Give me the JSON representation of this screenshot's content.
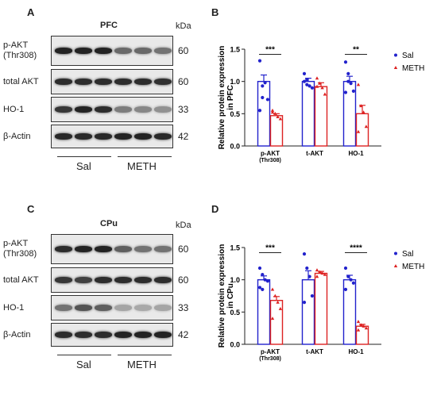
{
  "panels": {
    "A": {
      "label": "A",
      "title": "PFC",
      "kda_label": "kDa",
      "rows": [
        {
          "label": "p-AKT\n(Thr308)",
          "mw": "60",
          "intensity": [
            0.95,
            0.95,
            0.95,
            0.6,
            0.6,
            0.55
          ]
        },
        {
          "label": "total AKT",
          "mw": "60",
          "intensity": [
            0.9,
            0.9,
            0.9,
            0.9,
            0.9,
            0.88
          ]
        },
        {
          "label": "HO-1",
          "mw": "33",
          "intensity": [
            0.85,
            0.95,
            0.9,
            0.5,
            0.45,
            0.4
          ]
        },
        {
          "label": "β-Actin",
          "mw": "42",
          "intensity": [
            0.92,
            0.92,
            0.92,
            0.95,
            0.95,
            0.92
          ]
        }
      ],
      "groups": [
        "Sal",
        "METH"
      ]
    },
    "C": {
      "label": "C",
      "title": "CPu",
      "kda_label": "kDa",
      "rows": [
        {
          "label": "p-AKT\n(Thr308)",
          "mw": "60",
          "intensity": [
            0.9,
            0.95,
            0.95,
            0.65,
            0.55,
            0.55
          ]
        },
        {
          "label": "total AKT",
          "mw": "60",
          "intensity": [
            0.85,
            0.8,
            0.9,
            0.9,
            0.9,
            0.9
          ]
        },
        {
          "label": "HO-1",
          "mw": "33",
          "intensity": [
            0.55,
            0.7,
            0.65,
            0.3,
            0.28,
            0.3
          ]
        },
        {
          "label": "β-Actin",
          "mw": "42",
          "intensity": [
            0.9,
            0.9,
            0.9,
            0.95,
            0.95,
            0.95
          ]
        }
      ],
      "groups": [
        "Sal",
        "METH"
      ]
    },
    "B": {
      "label": "B"
    },
    "D": {
      "label": "D"
    }
  },
  "chart_data": [
    {
      "type": "bar",
      "panel": "B",
      "ylabel": "Relative protein expression\nin PFC",
      "categories": [
        "p-AKT\n(Thr308)",
        "t-AKT",
        "HO-1"
      ],
      "ylim": [
        0,
        1.5
      ],
      "yticks": [
        "0.0",
        "0.5",
        "1.0",
        "1.5"
      ],
      "series": [
        {
          "name": "Sal",
          "color": "#2222cc",
          "values": [
            1.0,
            1.0,
            1.0
          ],
          "sem": [
            0.1,
            0.05,
            0.08
          ],
          "points": [
            [
              1.32,
              0.93,
              0.98,
              0.72,
              0.55,
              0.75
            ],
            [
              1.12,
              1.03,
              0.93,
              0.9,
              1.0,
              0.95
            ],
            [
              1.3,
              1.12,
              0.97,
              0.85,
              0.83,
              1.0
            ]
          ]
        },
        {
          "name": "METH",
          "color": "#dd2222",
          "values": [
            0.47,
            0.92,
            0.5
          ],
          "sem": [
            0.03,
            0.06,
            0.13
          ],
          "points": [
            [
              0.55,
              0.5,
              0.45,
              0.42,
              0.52
            ],
            [
              1.05,
              0.97,
              0.9,
              0.8,
              0.92
            ],
            [
              0.95,
              0.62,
              0.52,
              0.3,
              0.22
            ]
          ]
        }
      ],
      "significance": [
        "***",
        "",
        "**"
      ]
    },
    {
      "type": "bar",
      "panel": "D",
      "ylabel": "Relative protein expression\nin CPu",
      "categories": [
        "p-AKT\n(Thr308)",
        "t-AKT",
        "HO-1"
      ],
      "ylim": [
        0,
        1.5
      ],
      "yticks": [
        "0.0",
        "0.5",
        "1.0",
        "1.5"
      ],
      "series": [
        {
          "name": "Sal",
          "color": "#2222cc",
          "values": [
            1.0,
            1.0,
            1.0
          ],
          "sem": [
            0.06,
            0.14,
            0.07
          ],
          "points": [
            [
              1.18,
              1.08,
              1.0,
              0.98,
              0.88,
              0.85
            ],
            [
              1.4,
              1.18,
              1.05,
              0.75,
              0.65
            ],
            [
              1.18,
              1.05,
              1.0,
              0.95,
              0.85
            ]
          ]
        },
        {
          "name": "METH",
          "color": "#dd2222",
          "values": [
            0.68,
            1.1,
            0.28
          ],
          "sem": [
            0.06,
            0.03,
            0.03
          ],
          "points": [
            [
              0.85,
              0.75,
              0.65,
              0.55,
              0.4
            ],
            [
              1.15,
              1.12,
              1.1,
              1.08,
              1.05
            ],
            [
              0.35,
              0.3,
              0.28,
              0.25,
              0.22
            ]
          ]
        }
      ],
      "significance": [
        "***",
        "",
        "****"
      ]
    }
  ]
}
